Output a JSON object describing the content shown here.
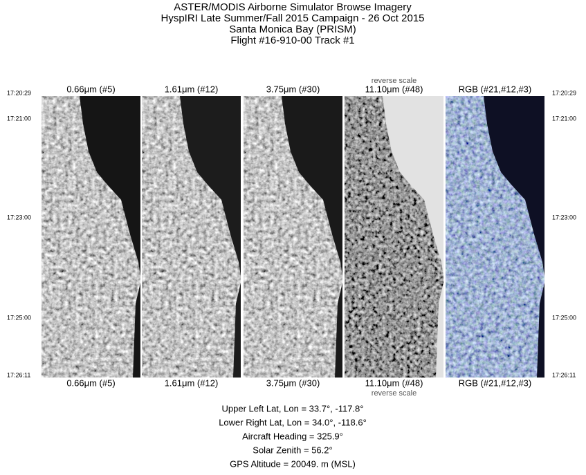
{
  "header": {
    "lines": [
      "ASTER/MODIS Airborne Simulator Browse Imagery",
      "HyspIRI Late Summer/Fall 2015 Campaign - 26 Oct 2015",
      "Santa Monica Bay (PRISM)",
      "Flight #16-910-00 Track #1"
    ]
  },
  "panels": [
    {
      "label": "0.66μm (#5)",
      "note": null
    },
    {
      "label": "1.61μm (#12)",
      "note": null
    },
    {
      "label": "3.75μm (#30)",
      "note": null
    },
    {
      "label": "11.10μm (#48)",
      "note": "reverse scale"
    },
    {
      "label": "RGB (#21,#12,#3)",
      "note": null
    }
  ],
  "times": [
    "17:20:29",
    "17:21:00",
    "17:23:00",
    "17:25:00",
    "17:26:11"
  ],
  "info": [
    "Upper Left Lat, Lon =   33.7°, -117.8°",
    "Lower Right Lat, Lon =   34.0°, -118.6°",
    "Aircraft Heading =  325.9°",
    "Solar Zenith =   56.2°",
    "GPS Altitude =  20049. m (MSL)"
  ]
}
